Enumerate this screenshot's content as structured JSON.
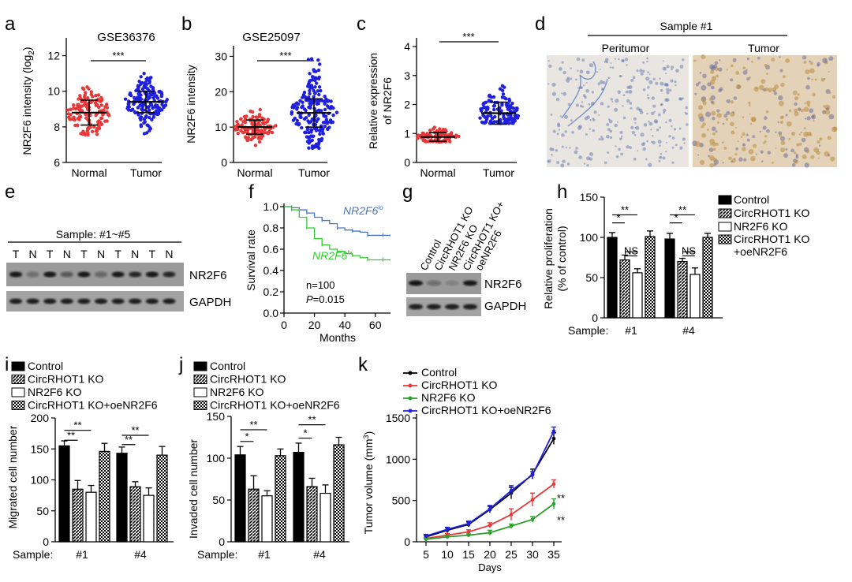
{
  "panel_letters": [
    "a",
    "b",
    "c",
    "d",
    "e",
    "f",
    "g",
    "h",
    "i",
    "j",
    "k"
  ],
  "sig3": "***",
  "sig2": "**",
  "sig1": "*",
  "ns": "NS",
  "groups_normal_tumor": [
    "Normal",
    "Tumor"
  ],
  "panel_a": {
    "title": "GSE36376",
    "ylabel": "NR2F6 intensity (log",
    "ylabel_sub": "2",
    "ylabel_end": ")",
    "yticks": [
      "6",
      "8",
      "10",
      "12"
    ]
  },
  "panel_b": {
    "title": "GSE25097",
    "ylabel": "NR2F6 intensity",
    "yticks": [
      "0",
      "10",
      "20",
      "30"
    ]
  },
  "panel_c": {
    "ylabel1": "Relative  expression",
    "ylabel2": "of NR2F6",
    "yticks": [
      "0",
      "1",
      "2",
      "3",
      "4"
    ]
  },
  "panel_d": {
    "sample": "Sample #1",
    "left": "Peritumor",
    "right": "Tumor"
  },
  "panel_e": {
    "sample": "Sample: #1~#5",
    "lanes": [
      "T",
      "N",
      "T",
      "N",
      "T",
      "N",
      "T",
      "N",
      "T",
      "N"
    ],
    "blot1": "NR2F6",
    "blot2": "GAPDH"
  },
  "panel_f": {
    "ylabel": "Survival rate",
    "xlabel": "Months",
    "lo": "NR2F6",
    "lo_sup": "lo",
    "hi": "NR2F6",
    "hi_sup": "hi",
    "n": "n=100",
    "p_letter": "P",
    "p_val": "=0.015",
    "yticks": [
      "0.0",
      "0.2",
      "0.4",
      "0.6",
      "0.8",
      "1.0"
    ],
    "xticks": [
      "0",
      "20",
      "40",
      "60"
    ]
  },
  "panel_g": {
    "lanes": [
      "Control",
      "CircRHOT1 KO",
      "NR2F6 KO",
      "CircRHOT1 KO+",
      "oeNR2F6"
    ],
    "blot1": "NR2F6",
    "blot2": "GAPDH"
  },
  "legend4": [
    "Control",
    "CircRHOT1 KO",
    "NR2F6 KO",
    "CircRHOT1 KO+oeNR2F6"
  ],
  "legend_h": [
    "Control",
    "CircRHOT1 KO",
    "NR2F6 KO",
    "CircRHOT1 KO",
    "+oeNR2F6"
  ],
  "sample_label": "Sample:",
  "samples": [
    "#1",
    "#4"
  ],
  "panel_h": {
    "ylabel1": "Relative proliferation",
    "ylabel2": "(% of control)",
    "yticks": [
      "0",
      "50",
      "100",
      "150"
    ]
  },
  "panel_i": {
    "ylabel": "Migrated cell number",
    "yticks": [
      "0",
      "50",
      "100",
      "150",
      "200"
    ]
  },
  "panel_j": {
    "ylabel": "Invaded cell number",
    "yticks": [
      "0",
      "50",
      "100",
      "150"
    ]
  },
  "panel_k": {
    "ylabel": "Tumor volume (mm",
    "ylabel_sup": "3",
    "ylabel_end": ")",
    "xlabel": "Days",
    "yticks": [
      "0",
      "500",
      "1000",
      "1500"
    ],
    "xticks": [
      "5",
      "10",
      "15",
      "20",
      "25",
      "30",
      "35"
    ]
  },
  "colors": {
    "red": "#e8393a",
    "blue": "#1f1fe0",
    "green": "#2aa02a",
    "bluegray": "#4a77c4",
    "lime": "#33cc33"
  },
  "chart_data": [
    {
      "panel": "a",
      "type": "scatter",
      "categories": [
        "Normal",
        "Tumor"
      ],
      "mean": [
        8.8,
        9.4
      ],
      "sd": [
        0.7,
        0.6
      ],
      "ylim": [
        6,
        12
      ]
    },
    {
      "panel": "b",
      "type": "scatter",
      "categories": [
        "Normal",
        "Tumor"
      ],
      "mean": [
        10,
        14
      ],
      "sd": [
        2,
        4
      ],
      "ylim": [
        0,
        30
      ]
    },
    {
      "panel": "c",
      "type": "scatter",
      "categories": [
        "Normal",
        "Tumor"
      ],
      "mean": [
        0.88,
        1.7
      ],
      "sd": [
        0.15,
        0.38
      ],
      "ylim": [
        0,
        4
      ]
    },
    {
      "panel": "f",
      "type": "line",
      "xlim": [
        0,
        70
      ],
      "ylim": [
        0,
        1
      ],
      "series": [
        {
          "name": "NR2F6lo",
          "x": [
            0,
            5,
            10,
            15,
            20,
            25,
            30,
            35,
            40,
            45,
            50,
            55,
            60,
            65
          ],
          "y": [
            1.0,
            0.99,
            0.97,
            0.94,
            0.9,
            0.87,
            0.84,
            0.8,
            0.78,
            0.77,
            0.76,
            0.73,
            0.73,
            0.73
          ]
        },
        {
          "name": "NR2F6hi",
          "x": [
            0,
            5,
            10,
            15,
            20,
            25,
            30,
            35,
            40,
            45,
            50,
            55,
            60,
            65
          ],
          "y": [
            1.0,
            0.97,
            0.9,
            0.8,
            0.7,
            0.64,
            0.6,
            0.58,
            0.56,
            0.54,
            0.52,
            0.5,
            0.5,
            0.5
          ]
        }
      ]
    },
    {
      "panel": "h",
      "type": "bar",
      "categories": [
        "#1",
        "#4"
      ],
      "ylim": [
        0,
        150
      ],
      "series": [
        {
          "name": "Control",
          "values": [
            100,
            98
          ],
          "err": [
            6,
            7
          ]
        },
        {
          "name": "CircRHOT1 KO",
          "values": [
            72,
            70
          ],
          "err": [
            6,
            4
          ]
        },
        {
          "name": "NR2F6 KO",
          "values": [
            56,
            54
          ],
          "err": [
            5,
            8
          ]
        },
        {
          "name": "CircRHOT1 KO+oeNR2F6",
          "values": [
            101,
            100
          ],
          "err": [
            7,
            5
          ]
        }
      ]
    },
    {
      "panel": "i",
      "type": "bar",
      "categories": [
        "#1",
        "#4"
      ],
      "ylim": [
        0,
        200
      ],
      "series": [
        {
          "name": "Control",
          "values": [
            155,
            143
          ],
          "err": [
            8,
            10
          ]
        },
        {
          "name": "CircRHOT1 KO",
          "values": [
            85,
            89
          ],
          "err": [
            14,
            8
          ]
        },
        {
          "name": "NR2F6 KO",
          "values": [
            80,
            75
          ],
          "err": [
            11,
            12
          ]
        },
        {
          "name": "CircRHOT1 KO+oeNR2F6",
          "values": [
            146,
            140
          ],
          "err": [
            13,
            14
          ]
        }
      ]
    },
    {
      "panel": "j",
      "type": "bar",
      "categories": [
        "#1",
        "#4"
      ],
      "ylim": [
        0,
        150
      ],
      "series": [
        {
          "name": "Control",
          "values": [
            104,
            107
          ],
          "err": [
            10,
            11
          ]
        },
        {
          "name": "CircRHOT1 KO",
          "values": [
            63,
            66
          ],
          "err": [
            16,
            10
          ]
        },
        {
          "name": "NR2F6 KO",
          "values": [
            55,
            58
          ],
          "err": [
            6,
            10
          ]
        },
        {
          "name": "CircRHOT1 KO+oeNR2F6",
          "values": [
            103,
            116
          ],
          "err": [
            8,
            9
          ]
        }
      ]
    },
    {
      "panel": "k",
      "type": "line",
      "x": [
        5,
        10,
        15,
        20,
        25,
        30,
        35
      ],
      "ylim": [
        0,
        1500
      ],
      "series": [
        {
          "name": "Control",
          "values": [
            60,
            140,
            210,
            390,
            590,
            820,
            1250
          ],
          "err": [
            20,
            30,
            30,
            40,
            70,
            60,
            70
          ]
        },
        {
          "name": "CircRHOT1 KO",
          "values": [
            40,
            80,
            120,
            200,
            330,
            510,
            700
          ],
          "err": [
            15,
            20,
            25,
            30,
            70,
            80,
            50
          ]
        },
        {
          "name": "NR2F6 KO",
          "values": [
            30,
            60,
            80,
            110,
            190,
            270,
            460
          ],
          "err": [
            10,
            15,
            15,
            30,
            25,
            35,
            60
          ]
        },
        {
          "name": "CircRHOT1 KO+oeNR2F6",
          "values": [
            70,
            150,
            220,
            400,
            620,
            810,
            1340
          ],
          "err": [
            20,
            25,
            30,
            40,
            60,
            40,
            50
          ]
        }
      ]
    }
  ]
}
